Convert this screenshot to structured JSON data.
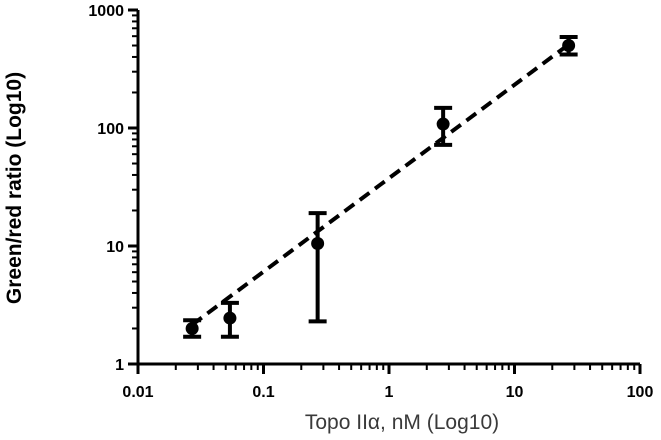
{
  "chart_data": {
    "type": "scatter",
    "xlabel": "Topo IIα, nM (Log10)",
    "ylabel": "Green/red ratio (Log10)",
    "x_scale": "log",
    "y_scale": "log",
    "xlim": [
      0.01,
      100
    ],
    "ylim": [
      1,
      1000
    ],
    "x_ticks": [
      0.01,
      0.1,
      1,
      10,
      100
    ],
    "x_tick_labels": [
      "0.01",
      "0.1",
      "1",
      "10",
      "100"
    ],
    "y_ticks": [
      1,
      10,
      100,
      1000
    ],
    "y_tick_labels": [
      "1",
      "10",
      "100",
      "1000"
    ],
    "grid": false,
    "legend": "none",
    "points": [
      {
        "x": 0.027,
        "y": 2.0,
        "y_low": 1.7,
        "y_high": 2.35
      },
      {
        "x": 0.054,
        "y": 2.45,
        "y_low": 1.7,
        "y_high": 3.3
      },
      {
        "x": 0.27,
        "y": 10.5,
        "y_low": 2.3,
        "y_high": 19
      },
      {
        "x": 2.7,
        "y": 108,
        "y_low": 72,
        "y_high": 148
      },
      {
        "x": 27,
        "y": 500,
        "y_low": 420,
        "y_high": 590
      }
    ],
    "fit_line": {
      "style": "dashed",
      "x": [
        0.027,
        27
      ],
      "y": [
        2.15,
        510
      ]
    }
  }
}
